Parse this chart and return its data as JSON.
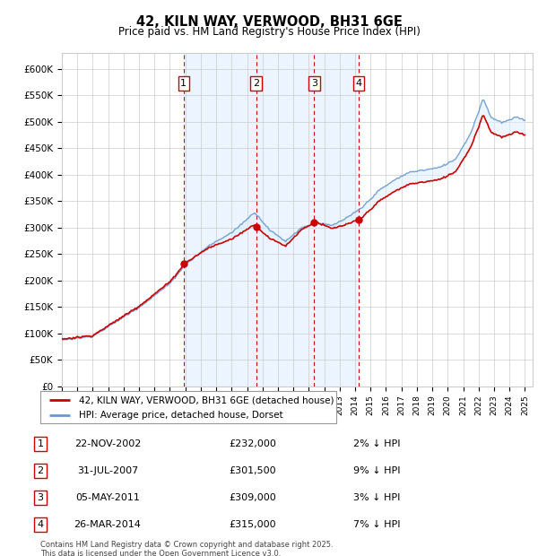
{
  "title": "42, KILN WAY, VERWOOD, BH31 6GE",
  "subtitle": "Price paid vs. HM Land Registry's House Price Index (HPI)",
  "ylabel_ticks": [
    "£0",
    "£50K",
    "£100K",
    "£150K",
    "£200K",
    "£250K",
    "£300K",
    "£350K",
    "£400K",
    "£450K",
    "£500K",
    "£550K",
    "£600K"
  ],
  "ylim": [
    0,
    630000
  ],
  "ytick_values": [
    0,
    50000,
    100000,
    150000,
    200000,
    250000,
    300000,
    350000,
    400000,
    450000,
    500000,
    550000,
    600000
  ],
  "sale_prices": [
    232000,
    301500,
    309000,
    315000
  ],
  "sale_labels": [
    "1",
    "2",
    "3",
    "4"
  ],
  "legend_house": "42, KILN WAY, VERWOOD, BH31 6GE (detached house)",
  "legend_hpi": "HPI: Average price, detached house, Dorset",
  "table_rows": [
    [
      "1",
      "22-NOV-2002",
      "£232,000",
      "2% ↓ HPI"
    ],
    [
      "2",
      "31-JUL-2007",
      "£301,500",
      "9% ↓ HPI"
    ],
    [
      "3",
      "05-MAY-2011",
      "£309,000",
      "3% ↓ HPI"
    ],
    [
      "4",
      "26-MAR-2014",
      "£315,000",
      "7% ↓ HPI"
    ]
  ],
  "footnote": "Contains HM Land Registry data © Crown copyright and database right 2025.\nThis data is licensed under the Open Government Licence v3.0.",
  "house_color": "#cc0000",
  "hpi_color": "#6699cc",
  "shade_color": "#ddeeff",
  "vline_color": "#cc0000",
  "grid_color": "#cccccc",
  "background_color": "#ffffff"
}
